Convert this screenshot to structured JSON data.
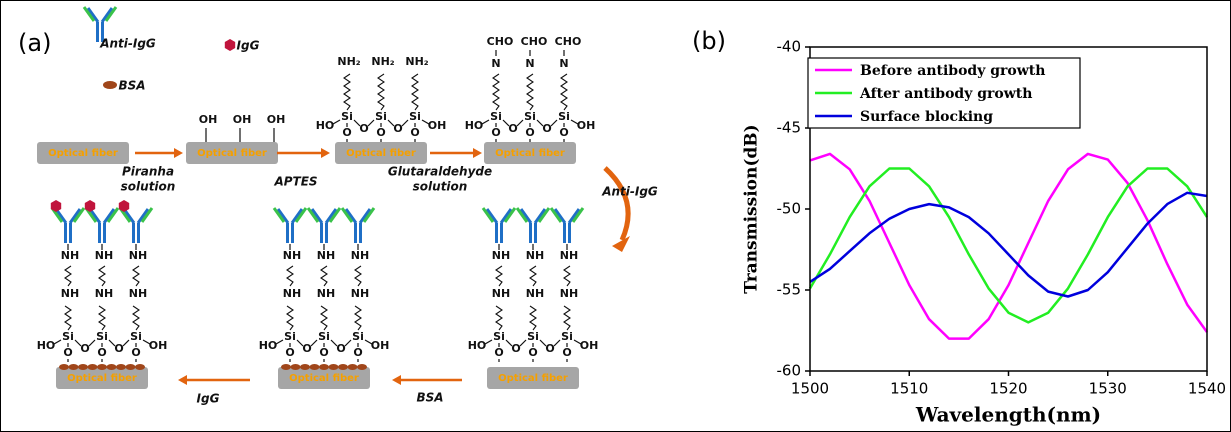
{
  "panel_a": {
    "label": "(a)",
    "legend": {
      "antibody": "Anti-IgG",
      "antigen": "IgG",
      "blocker": "BSA"
    },
    "chem": {
      "optical_fiber": "Optical fiber",
      "oh": "OH",
      "ho": "HO",
      "si": "Si",
      "o": "O",
      "nh2": "NH₂",
      "n": "N",
      "cho": "CHO",
      "nh": "NH"
    },
    "steps": {
      "piranha": [
        "Piranha",
        "solution"
      ],
      "aptes": "APTES",
      "glutaraldehyde": [
        "Glutaraldehyde",
        "solution"
      ],
      "anti_igg": "Anti-IgG",
      "bsa": "BSA",
      "igg": "IgG"
    }
  },
  "chart_data": {
    "type": "line",
    "label": "(b)",
    "xlabel": "Wavelength(nm)",
    "ylabel": "Transmission(dB)",
    "x": [
      1500,
      1502,
      1504,
      1506,
      1508,
      1510,
      1512,
      1514,
      1516,
      1518,
      1520,
      1522,
      1524,
      1526,
      1528,
      1530,
      1532,
      1534,
      1536,
      1538,
      1540
    ],
    "series": [
      {
        "name": "Before antibody growth",
        "color": "#ff00ff",
        "values": [
          -47.0,
          -46.6,
          -47.55,
          -49.5,
          -52.1,
          -54.7,
          -56.8,
          -58.0,
          -58.0,
          -56.8,
          -54.7,
          -52.1,
          -49.5,
          -47.55,
          -46.6,
          -46.95,
          -48.4,
          -50.7,
          -53.4,
          -55.9,
          -57.6
        ]
      },
      {
        "name": "After antibody growth",
        "color": "#22ee22",
        "values": [
          -54.9,
          -52.8,
          -50.5,
          -48.6,
          -47.5,
          -47.5,
          -48.6,
          -50.5,
          -52.8,
          -54.9,
          -56.4,
          -57.0,
          -56.4,
          -54.9,
          -52.8,
          -50.5,
          -48.6,
          -47.5,
          -47.5,
          -48.6,
          -50.5
        ]
      },
      {
        "name": "Surface blocking",
        "color": "#0000dd",
        "values": [
          -54.5,
          -53.7,
          -52.6,
          -51.5,
          -50.6,
          -50.0,
          -49.7,
          -49.9,
          -50.5,
          -51.5,
          -52.8,
          -54.1,
          -55.1,
          -55.4,
          -55.0,
          -53.9,
          -52.4,
          -50.9,
          -49.7,
          -49.0,
          -49.2
        ]
      }
    ],
    "xlim": [
      1500,
      1540
    ],
    "ylim": [
      -60,
      -40
    ],
    "xticks": [
      1500,
      1510,
      1520,
      1530,
      1540
    ],
    "yticks": [
      -60,
      -55,
      -50,
      -45,
      -40
    ],
    "legend": "upper left",
    "grid": false
  }
}
